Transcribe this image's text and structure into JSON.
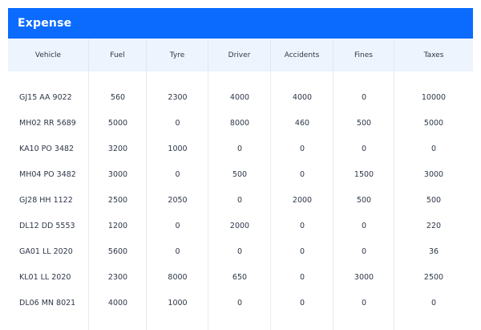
{
  "card": {
    "title": "Expense"
  },
  "table": {
    "columns": [
      "Vehicle",
      "Fuel",
      "Tyre",
      "Driver",
      "Accidents",
      "Fines",
      "Taxes"
    ],
    "rows": [
      [
        "GJ15 AA 9022",
        "560",
        "2300",
        "4000",
        "4000",
        "0",
        "10000"
      ],
      [
        "MH02 RR 5689",
        "5000",
        "0",
        "8000",
        "460",
        "500",
        "5000"
      ],
      [
        "KA10 PO 3482",
        "3200",
        "1000",
        "0",
        "0",
        "0",
        "0"
      ],
      [
        "MH04 PO 3482",
        "3000",
        "0",
        "500",
        "0",
        "1500",
        "3000"
      ],
      [
        "GJ28 HH 1122",
        "2500",
        "2050",
        "0",
        "2000",
        "500",
        "500"
      ],
      [
        "DL12 DD 5553",
        "1200",
        "0",
        "2000",
        "0",
        "0",
        "220"
      ],
      [
        "GA01 LL 2020",
        "5600",
        "0",
        "0",
        "0",
        "0",
        "36"
      ],
      [
        "KL01 LL 2020",
        "2300",
        "8000",
        "650",
        "0",
        "3000",
        "2500"
      ],
      [
        "DL06 MN 8021",
        "4000",
        "1000",
        "0",
        "0",
        "0",
        "0"
      ]
    ]
  },
  "colors": {
    "header_bg": "#0b6bff",
    "thead_bg": "#edf4fd",
    "text": "#2d3748",
    "grid": "#e6ebf1"
  }
}
